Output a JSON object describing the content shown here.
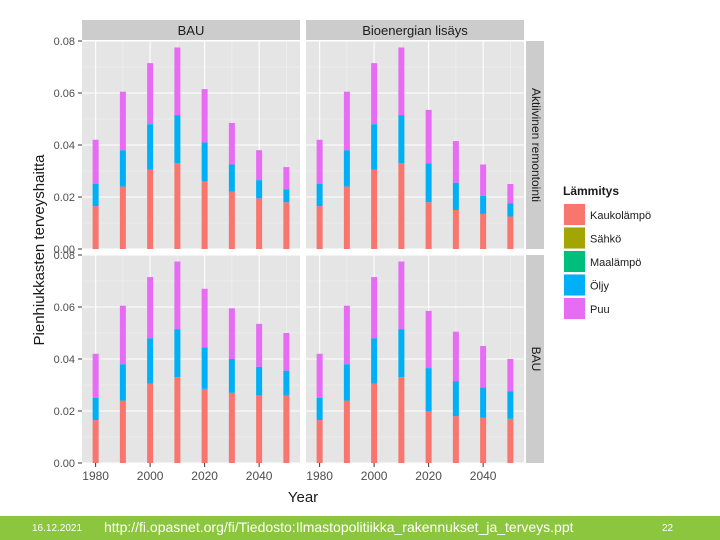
{
  "colors": {
    "panel_bg": "#e5e5e5",
    "strip_bg": "#cccccc",
    "grid": "#ffffff",
    "footer_bg": "#8cc63f",
    "footer_text": "#ffffff"
  },
  "chart_data": {
    "type": "bar",
    "subtype": "stacked, faceted",
    "xlabel": "Year",
    "ylabel": "Pienhiukkasten terveyshaitta",
    "xlim": [
      1975,
      2055
    ],
    "ylim": [
      0,
      0.08
    ],
    "x_ticks": [
      1980,
      2000,
      2020,
      2040
    ],
    "x_tick_labels": [
      "1980",
      "2000",
      "2020",
      "2040"
    ],
    "y_ticks": [
      0,
      0.02,
      0.04,
      0.06,
      0.08
    ],
    "y_tick_labels": [
      "0.00",
      "0.02",
      "0.04",
      "0.06",
      "0.08"
    ],
    "x": [
      1980,
      1990,
      2000,
      2010,
      2020,
      2030,
      2040,
      2050
    ],
    "grid": true,
    "legend": {
      "title": "Lämmitys",
      "position": "right",
      "items": [
        {
          "name": "Kaukolämpö",
          "color": "#f8766d"
        },
        {
          "name": "Sähkö",
          "color": "#a3a500"
        },
        {
          "name": "Maalämpö",
          "color": "#00bf7d"
        },
        {
          "name": "Öljy",
          "color": "#00b0f6"
        },
        {
          "name": "Puu",
          "color": "#e76bf3"
        }
      ]
    },
    "col_facets": [
      "BAU",
      "Bioenergian lisäys"
    ],
    "row_facets": [
      "Aktiivinen remontointi",
      "BAU"
    ],
    "panels": [
      {
        "row": 0,
        "col": 0,
        "series": [
          {
            "name": "Kaukolämpö",
            "values": [
              0.0165,
              0.024,
              0.0305,
              0.033,
              0.026,
              0.022,
              0.0195,
              0.018
            ]
          },
          {
            "name": "Sähkö",
            "values": [
              0,
              0,
              0,
              0,
              0,
              0,
              0,
              0
            ]
          },
          {
            "name": "Maalämpö",
            "values": [
              0,
              0,
              0,
              0,
              0,
              0,
              0,
              0
            ]
          },
          {
            "name": "Öljy",
            "values": [
              0.0085,
              0.014,
              0.0175,
              0.0185,
              0.015,
              0.0105,
              0.007,
              0.005
            ]
          },
          {
            "name": "Puu",
            "values": [
              0.017,
              0.0225,
              0.0235,
              0.026,
              0.0205,
              0.016,
              0.0115,
              0.0085
            ]
          }
        ]
      },
      {
        "row": 0,
        "col": 1,
        "series": [
          {
            "name": "Kaukolämpö",
            "values": [
              0.0165,
              0.024,
              0.0305,
              0.033,
              0.018,
              0.015,
              0.0135,
              0.0125
            ]
          },
          {
            "name": "Sähkö",
            "values": [
              0,
              0,
              0,
              0,
              0,
              0,
              0,
              0
            ]
          },
          {
            "name": "Maalämpö",
            "values": [
              0,
              0,
              0,
              0,
              0,
              0,
              0,
              0
            ]
          },
          {
            "name": "Öljy",
            "values": [
              0.0085,
              0.014,
              0.0175,
              0.0185,
              0.015,
              0.0105,
              0.007,
              0.005
            ]
          },
          {
            "name": "Puu",
            "values": [
              0.017,
              0.0225,
              0.0235,
              0.026,
              0.0205,
              0.016,
              0.012,
              0.0075
            ]
          }
        ]
      },
      {
        "row": 1,
        "col": 0,
        "series": [
          {
            "name": "Kaukolämpö",
            "values": [
              0.0165,
              0.024,
              0.0305,
              0.033,
              0.0285,
              0.027,
              0.026,
              0.026
            ]
          },
          {
            "name": "Sähkö",
            "values": [
              0,
              0,
              0,
              0,
              0,
              0,
              0,
              0
            ]
          },
          {
            "name": "Maalämpö",
            "values": [
              0,
              0,
              0,
              0,
              0,
              0,
              0,
              0
            ]
          },
          {
            "name": "Öljy",
            "values": [
              0.0085,
              0.014,
              0.0175,
              0.0185,
              0.016,
              0.013,
              0.011,
              0.0095
            ]
          },
          {
            "name": "Puu",
            "values": [
              0.017,
              0.0225,
              0.0235,
              0.026,
              0.0225,
              0.0195,
              0.0165,
              0.0145
            ]
          }
        ]
      },
      {
        "row": 1,
        "col": 1,
        "series": [
          {
            "name": "Kaukolämpö",
            "values": [
              0.0165,
              0.024,
              0.0305,
              0.033,
              0.02,
              0.018,
              0.0175,
              0.017
            ]
          },
          {
            "name": "Sähkö",
            "values": [
              0,
              0,
              0,
              0,
              0,
              0,
              0,
              0
            ]
          },
          {
            "name": "Maalämpö",
            "values": [
              0,
              0,
              0,
              0,
              0,
              0,
              0,
              0
            ]
          },
          {
            "name": "Öljy",
            "values": [
              0.0085,
              0.014,
              0.0175,
              0.0185,
              0.0165,
              0.0135,
              0.0115,
              0.0105
            ]
          },
          {
            "name": "Puu",
            "values": [
              0.017,
              0.0225,
              0.0235,
              0.026,
              0.022,
              0.019,
              0.016,
              0.0125
            ]
          }
        ]
      }
    ]
  },
  "footer": {
    "date": "16.12.2021",
    "url": "http://fi.opasnet.org/fi/Tiedosto:Ilmastopolitiikka_rakennukset_ja_terveys.ppt",
    "page": "22"
  }
}
